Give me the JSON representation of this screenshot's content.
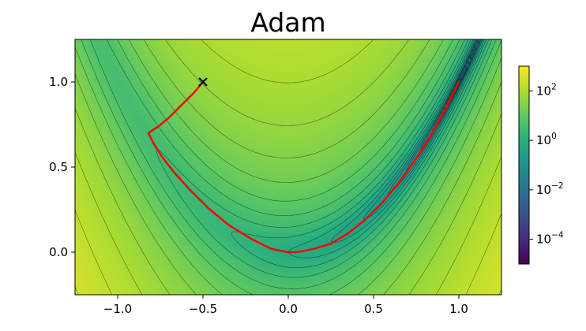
{
  "chart_data": {
    "type": "contour",
    "title": "Adam",
    "xlabel": "",
    "ylabel": "",
    "xlim": [
      -1.25,
      1.25
    ],
    "ylim": [
      -0.25,
      1.25
    ],
    "x_ticks": [
      -1.0,
      -0.5,
      0.0,
      0.5,
      1.0
    ],
    "x_tick_labels": [
      "−1.0",
      "−0.5",
      "0.0",
      "0.5",
      "1.0"
    ],
    "y_ticks": [
      0.0,
      0.5,
      1.0
    ],
    "y_tick_labels": [
      "0.0",
      "0.5",
      "1.0"
    ],
    "function": "rosenbrock",
    "scale": "log",
    "colormap": "viridis",
    "colorbar": {
      "range": [
        1e-05,
        1000
      ],
      "ticks": [
        0.0001,
        0.01,
        1,
        100
      ],
      "tick_bases": [
        "10",
        "10",
        "10",
        "10"
      ],
      "tick_exponents": [
        "−4",
        "−2",
        "0",
        "2"
      ]
    },
    "start_marker": {
      "x": -0.5,
      "y": 1.0,
      "symbol": "×"
    },
    "path_color": "#ff0000",
    "path": [
      [
        -0.5,
        1.0
      ],
      [
        -0.55,
        0.94
      ],
      [
        -0.62,
        0.87
      ],
      [
        -0.7,
        0.79
      ],
      [
        -0.76,
        0.74
      ],
      [
        -0.82,
        0.7
      ],
      [
        -0.79,
        0.64
      ],
      [
        -0.74,
        0.56
      ],
      [
        -0.67,
        0.47
      ],
      [
        -0.58,
        0.37
      ],
      [
        -0.47,
        0.26
      ],
      [
        -0.35,
        0.16
      ],
      [
        -0.22,
        0.08
      ],
      [
        -0.1,
        0.02
      ],
      [
        0.0,
        0.0
      ],
      [
        0.05,
        0.0
      ],
      [
        0.15,
        0.02
      ],
      [
        0.25,
        0.05
      ],
      [
        0.35,
        0.11
      ],
      [
        0.45,
        0.19
      ],
      [
        0.55,
        0.29
      ],
      [
        0.65,
        0.41
      ],
      [
        0.75,
        0.55
      ],
      [
        0.85,
        0.71
      ],
      [
        0.93,
        0.86
      ],
      [
        1.0,
        1.0
      ]
    ]
  }
}
